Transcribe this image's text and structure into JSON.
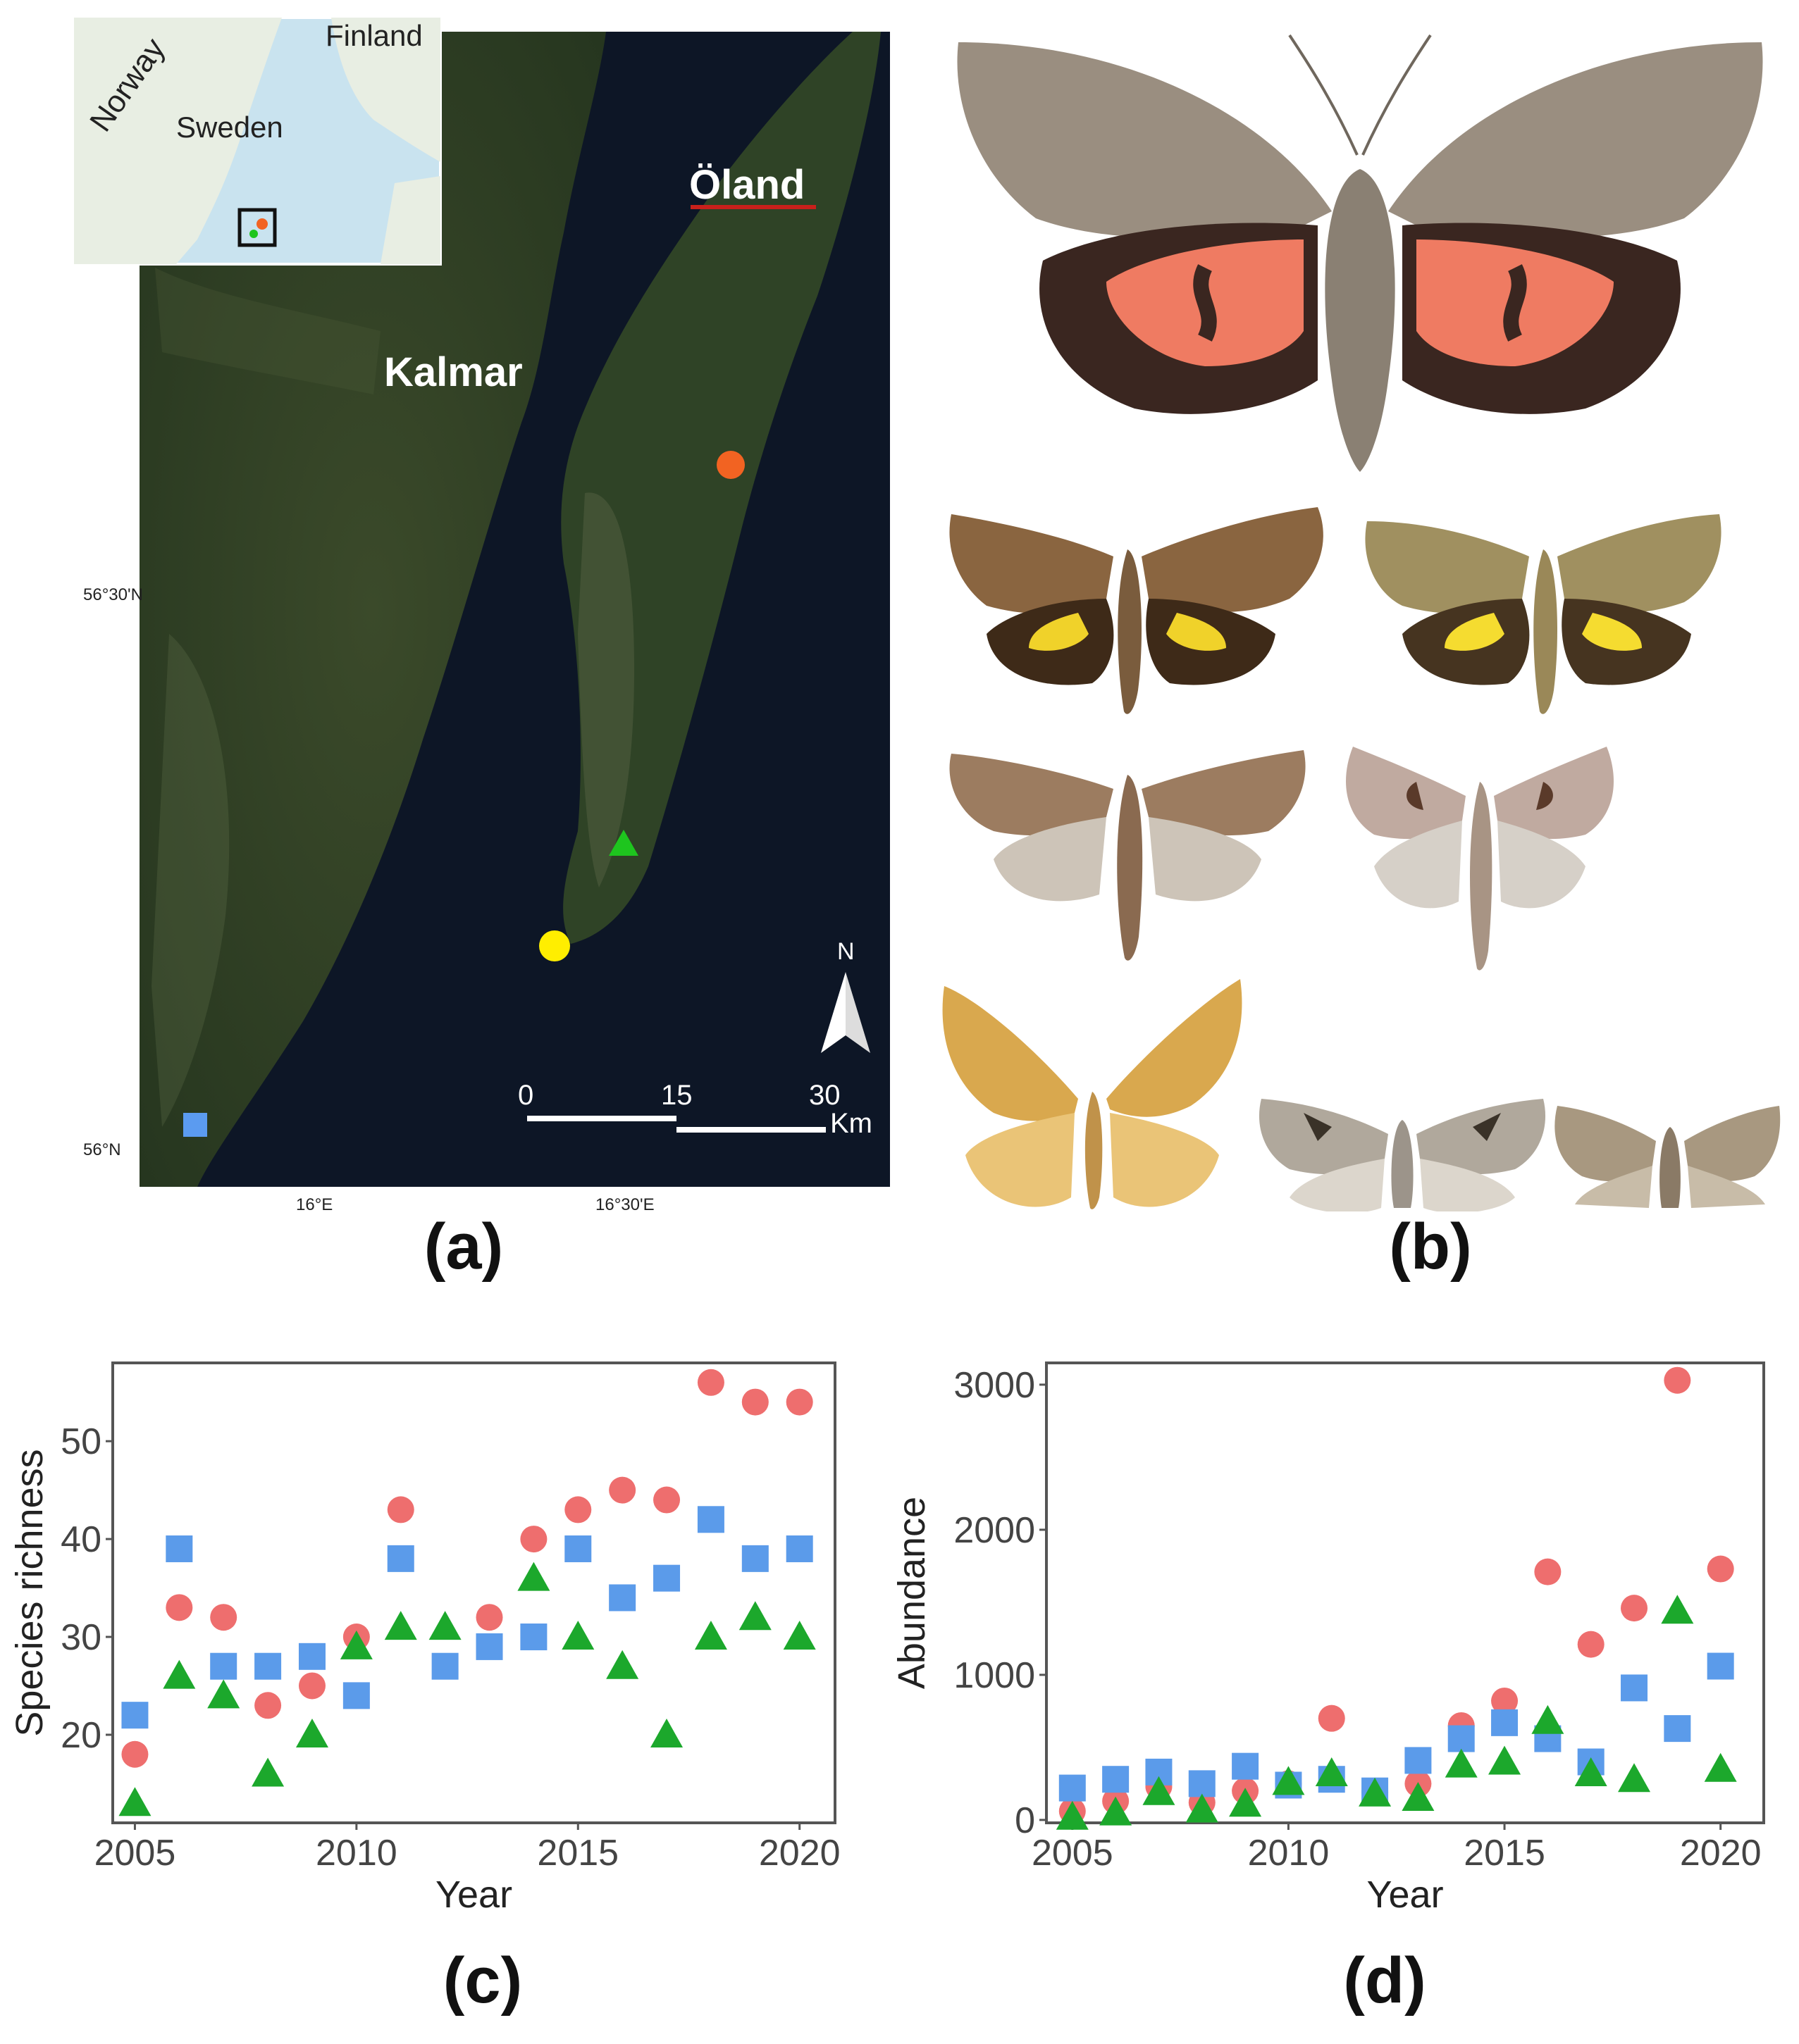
{
  "panel_labels": {
    "a": "(a)",
    "b": "(b)",
    "c": "(c)",
    "d": "(d)"
  },
  "map": {
    "inset_labels": {
      "norway": "Norway",
      "sweden": "Sweden",
      "finland": "Finland"
    },
    "place_labels": {
      "kalmar": "Kalmar",
      "oland": "Öland"
    },
    "lat_ticks": [
      "56°30'N",
      "56°N"
    ],
    "lon_ticks": [
      "16°E",
      "16°30'E"
    ],
    "north_label": "N",
    "scale_labels": {
      "zero": "0",
      "mid": "15",
      "end": "30",
      "unit": "Km"
    },
    "site_colors": {
      "orange": "#f26322",
      "green": "#1ec51e",
      "yellow": "#ffee00",
      "blue": "#5b9bf0"
    }
  },
  "chart_data": [
    {
      "type": "scatter",
      "xlabel": "Year",
      "ylabel": "Species richness",
      "xlim": [
        2004.5,
        2020.8
      ],
      "ylim": [
        11,
        58
      ],
      "xticks": [
        2005,
        2010,
        2015,
        2020
      ],
      "yticks": [
        20,
        30,
        40,
        50
      ],
      "series": [
        {
          "marker": "circle",
          "color": "#ee6e6e",
          "x": [
            2005,
            2006,
            2007,
            2008,
            2009,
            2010,
            2011,
            2013,
            2014,
            2015,
            2016,
            2017,
            2018,
            2019,
            2020
          ],
          "y": [
            18,
            33,
            32,
            23,
            25,
            30,
            43,
            32,
            40,
            43,
            45,
            44,
            56,
            54,
            54
          ]
        },
        {
          "marker": "square",
          "color": "#5b9bea",
          "x": [
            2005,
            2006,
            2007,
            2008,
            2009,
            2010,
            2011,
            2012,
            2013,
            2014,
            2015,
            2016,
            2017,
            2018,
            2019,
            2020
          ],
          "y": [
            22,
            39,
            27,
            27,
            28,
            24,
            38,
            27,
            29,
            30,
            39,
            34,
            36,
            42,
            38,
            39
          ]
        },
        {
          "marker": "triangle",
          "color": "#1ca82c",
          "x": [
            2005,
            2006,
            2007,
            2008,
            2009,
            2010,
            2011,
            2012,
            2014,
            2015,
            2016,
            2017,
            2018,
            2019,
            2020
          ],
          "y": [
            13,
            26,
            24,
            16,
            20,
            29,
            31,
            31,
            36,
            30,
            27,
            20,
            30,
            32,
            30
          ]
        }
      ]
    },
    {
      "type": "scatter",
      "xlabel": "Year",
      "ylabel": "Abundance",
      "xlim": [
        2004.4,
        2021.0
      ],
      "ylim": [
        -20,
        3150
      ],
      "xticks": [
        2005,
        2010,
        2015,
        2020
      ],
      "yticks": [
        0,
        1000,
        2000,
        3000
      ],
      "series": [
        {
          "marker": "circle",
          "color": "#ee6e6e",
          "x": [
            2005,
            2006,
            2007,
            2008,
            2009,
            2010,
            2011,
            2012,
            2013,
            2014,
            2015,
            2016,
            2017,
            2018,
            2019,
            2020
          ],
          "y": [
            60,
            130,
            230,
            120,
            200,
            250,
            700,
            190,
            250,
            650,
            820,
            1710,
            1210,
            1460,
            3030,
            1730
          ]
        },
        {
          "marker": "square",
          "color": "#5b9bea",
          "x": [
            2005,
            2006,
            2007,
            2008,
            2009,
            2010,
            2011,
            2012,
            2013,
            2014,
            2015,
            2016,
            2017,
            2018,
            2019,
            2020
          ],
          "y": [
            220,
            280,
            330,
            250,
            370,
            240,
            280,
            200,
            410,
            560,
            670,
            560,
            400,
            910,
            630,
            1060
          ]
        },
        {
          "marker": "triangle",
          "color": "#1ca82c",
          "x": [
            2005,
            2006,
            2007,
            2008,
            2009,
            2010,
            2011,
            2012,
            2013,
            2014,
            2015,
            2016,
            2017,
            2018,
            2019,
            2020
          ],
          "y": [
            20,
            50,
            190,
            70,
            110,
            260,
            320,
            180,
            150,
            380,
            400,
            680,
            320,
            280,
            1440,
            350
          ]
        }
      ]
    }
  ]
}
